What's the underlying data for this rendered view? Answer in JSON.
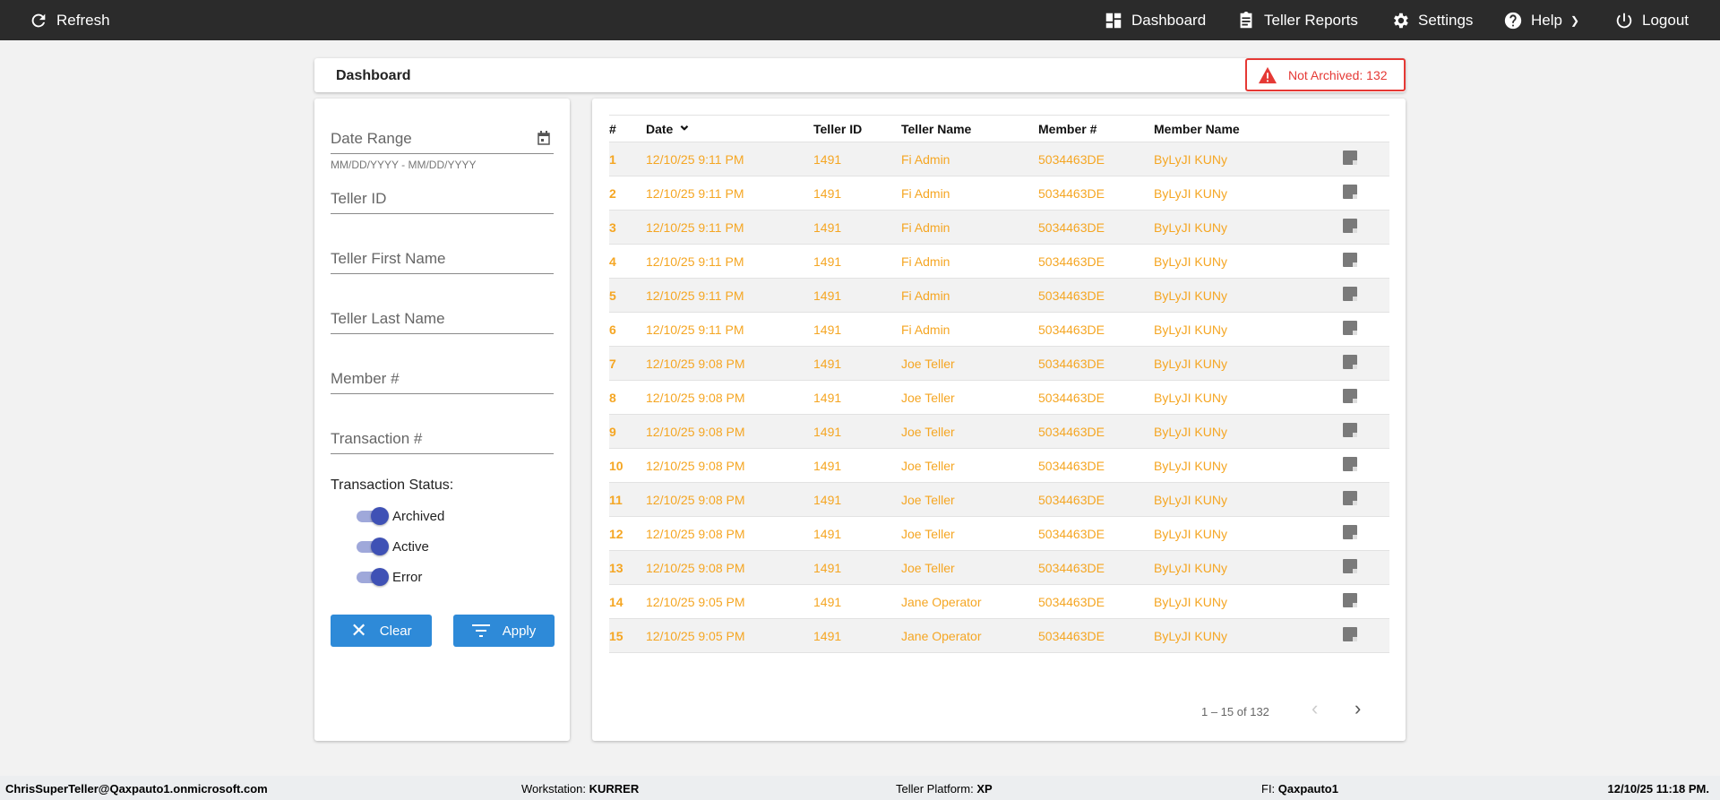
{
  "topbar": {
    "refresh": "Refresh",
    "dashboard": "Dashboard",
    "teller_reports": "Teller Reports",
    "settings": "Settings",
    "help": "Help",
    "logout": "Logout"
  },
  "header": {
    "title": "Dashboard",
    "badge": "Not Archived: 132",
    "badge_color": "#e53935"
  },
  "filters": {
    "date_range": "Date Range",
    "date_hint": "MM/DD/YYYY - MM/DD/YYYY",
    "teller_id": "Teller ID",
    "first_name": "Teller First Name",
    "last_name": "Teller Last Name",
    "member": "Member #",
    "transaction": "Transaction #",
    "status_label": "Transaction Status:",
    "toggles": [
      {
        "label": "Archived",
        "on": true
      },
      {
        "label": "Active",
        "on": true
      },
      {
        "label": "Error",
        "on": true
      }
    ],
    "clear": "Clear",
    "apply": "Apply"
  },
  "table": {
    "columns": [
      "#",
      "Date",
      "Teller ID",
      "Teller Name",
      "Member #",
      "Member Name"
    ],
    "rows": [
      [
        "1",
        "12/10/25 9:11 PM",
        "1491",
        "Fi Admin",
        "5034463DE",
        "ByLyJI KUNy"
      ],
      [
        "2",
        "12/10/25 9:11 PM",
        "1491",
        "Fi Admin",
        "5034463DE",
        "ByLyJI KUNy"
      ],
      [
        "3",
        "12/10/25 9:11 PM",
        "1491",
        "Fi Admin",
        "5034463DE",
        "ByLyJI KUNy"
      ],
      [
        "4",
        "12/10/25 9:11 PM",
        "1491",
        "Fi Admin",
        "5034463DE",
        "ByLyJI KUNy"
      ],
      [
        "5",
        "12/10/25 9:11 PM",
        "1491",
        "Fi Admin",
        "5034463DE",
        "ByLyJI KUNy"
      ],
      [
        "6",
        "12/10/25 9:11 PM",
        "1491",
        "Fi Admin",
        "5034463DE",
        "ByLyJI KUNy"
      ],
      [
        "7",
        "12/10/25 9:08 PM",
        "1491",
        "Joe Teller",
        "5034463DE",
        "ByLyJI KUNy"
      ],
      [
        "8",
        "12/10/25 9:08 PM",
        "1491",
        "Joe Teller",
        "5034463DE",
        "ByLyJI KUNy"
      ],
      [
        "9",
        "12/10/25 9:08 PM",
        "1491",
        "Joe Teller",
        "5034463DE",
        "ByLyJI KUNy"
      ],
      [
        "10",
        "12/10/25 9:08 PM",
        "1491",
        "Joe Teller",
        "5034463DE",
        "ByLyJI KUNy"
      ],
      [
        "11",
        "12/10/25 9:08 PM",
        "1491",
        "Joe Teller",
        "5034463DE",
        "ByLyJI KUNy"
      ],
      [
        "12",
        "12/10/25 9:08 PM",
        "1491",
        "Joe Teller",
        "5034463DE",
        "ByLyJI KUNy"
      ],
      [
        "13",
        "12/10/25 9:08 PM",
        "1491",
        "Joe Teller",
        "5034463DE",
        "ByLyJI KUNy"
      ],
      [
        "14",
        "12/10/25 9:05 PM",
        "1491",
        "Jane Operator",
        "5034463DE",
        "ByLyJI KUNy"
      ],
      [
        "15",
        "12/10/25 9:05 PM",
        "1491",
        "Jane Operator",
        "5034463DE",
        "ByLyJI KUNy"
      ]
    ],
    "row_icon": "note-icon",
    "row_color": "#f5a623"
  },
  "pager": {
    "range": "1 – 15 of 132"
  },
  "footer": {
    "user": "ChrisSuperTeller@Qaxpauto1.onmicrosoft.com",
    "workstation_label": "Workstation: ",
    "workstation": "KURRER",
    "platform_label": "Teller Platform: ",
    "platform": "XP",
    "fi_label": "FI: ",
    "fi": "Qaxpauto1",
    "datetime": "12/10/25 11:18 PM."
  }
}
